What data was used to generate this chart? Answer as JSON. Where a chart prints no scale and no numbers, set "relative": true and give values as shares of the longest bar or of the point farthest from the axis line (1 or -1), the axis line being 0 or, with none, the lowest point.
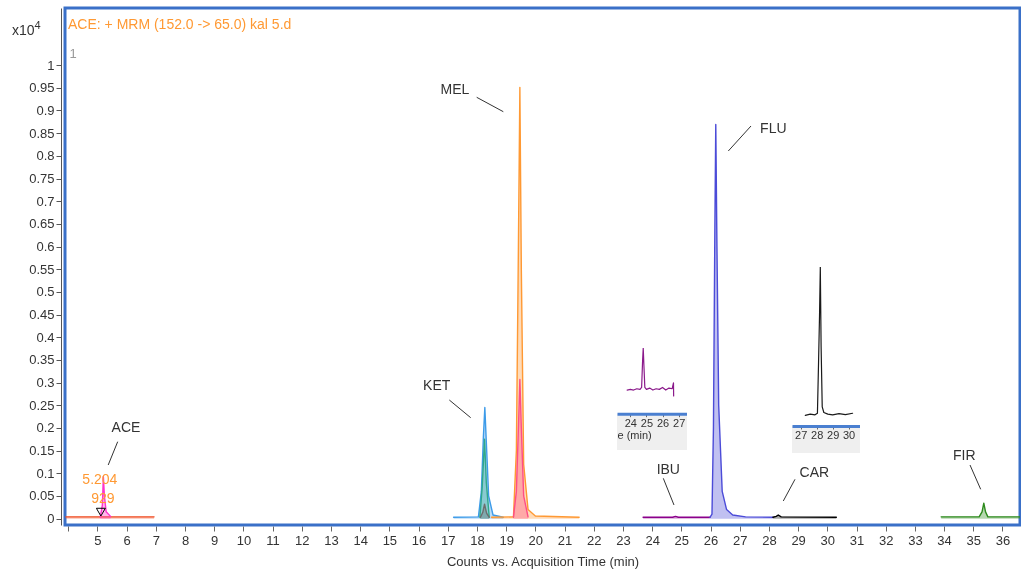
{
  "chart_data": [
    {
      "type": "area",
      "title": "ACE: + MRM (152.0 -> 65.0) kal 5.d",
      "xlabel": "Counts vs. Acquisition Time (min)",
      "ylabel": "x10$^{4}$",
      "xlim": [
        3.89,
        36.6
      ],
      "ylim": [
        -0.014,
        1.126
      ],
      "xticks": [
        {
          "value": 4,
          "label": null
        },
        5,
        6,
        7,
        8,
        9,
        10,
        11,
        12,
        13,
        14,
        15,
        16,
        17,
        18,
        19,
        20,
        21,
        22,
        23,
        24,
        25,
        26,
        27,
        28,
        29,
        30,
        31,
        32,
        33,
        34,
        35,
        36
      ],
      "yticks": [
        0,
        0.05,
        0.1,
        0.15,
        0.2,
        0.25,
        0.3,
        0.35,
        0.4,
        0.45,
        0.5,
        0.55,
        0.6,
        0.65,
        0.7,
        0.75,
        0.8,
        0.85,
        0.9,
        0.95,
        1
      ],
      "series": [
        {
          "color": "#f04e23",
          "x": [
            3.92,
            5.0,
            5.4,
            6.94
          ],
          "values": [
            0.004,
            0.004,
            0.004,
            0.004
          ]
        },
        {
          "color": "#ff33cc",
          "x": [
            5.1,
            5.17,
            5.204,
            5.24,
            5.3,
            5.45
          ],
          "values": [
            0.004,
            0.03,
            0.093,
            0.05,
            0.015,
            0.005
          ]
        },
        {
          "color": "#3d9be9",
          "x": [
            17.2,
            18.05,
            18.15,
            18.22,
            18.27,
            18.32,
            18.4,
            18.55,
            18.9
          ],
          "values": [
            0.003,
            0.004,
            0.06,
            0.18,
            0.245,
            0.17,
            0.05,
            0.008,
            0.003
          ]
        },
        {
          "color": "#2fa88a",
          "x": [
            18.1,
            18.18,
            18.26,
            18.32,
            18.42
          ],
          "values": [
            0.003,
            0.07,
            0.175,
            0.08,
            0.004
          ]
        },
        {
          "color": "#6e6e6e",
          "x": [
            18.12,
            18.2,
            18.26,
            18.33,
            18.42
          ],
          "values": [
            0.003,
            0.014,
            0.032,
            0.012,
            0.003
          ]
        },
        {
          "color": "#ff9933",
          "x": [
            18.5,
            19.25,
            19.35,
            19.42,
            19.47,
            19.52,
            19.6,
            19.75,
            20.0,
            21.5
          ],
          "values": [
            0.003,
            0.004,
            0.15,
            0.6,
            0.951,
            0.55,
            0.12,
            0.02,
            0.006,
            0.003
          ]
        },
        {
          "color": "#ff4d88",
          "x": [
            19.25,
            19.35,
            19.43,
            19.47,
            19.52,
            19.6,
            19.75
          ],
          "values": [
            0.003,
            0.06,
            0.22,
            0.307,
            0.2,
            0.05,
            0.004
          ]
        },
        {
          "color": "#8b008b",
          "x": [
            23.69,
            24.7,
            24.8,
            24.9,
            25.98
          ],
          "values": [
            0.003,
            0.003,
            0.005,
            0.003,
            0.003
          ]
        },
        {
          "color": "#4b4bd8",
          "x": [
            25.98,
            26.05,
            26.1,
            26.15,
            26.18,
            26.22,
            26.28,
            26.4,
            26.55,
            26.76,
            27.2,
            28.14
          ],
          "values": [
            0.003,
            0.01,
            0.2,
            0.65,
            0.869,
            0.6,
            0.25,
            0.06,
            0.02,
            0.008,
            0.004,
            0.003
          ]
        },
        {
          "color": "#000000",
          "x": [
            28.14,
            28.25,
            28.32,
            28.42,
            30.31
          ],
          "values": [
            0.003,
            0.005,
            0.008,
            0.004,
            0.003
          ]
        },
        {
          "color": "#2e8b1e",
          "x": [
            33.9,
            35.2,
            35.3,
            35.36,
            35.42,
            35.5,
            36.6
          ],
          "values": [
            0.004,
            0.004,
            0.015,
            0.034,
            0.015,
            0.004,
            0.004
          ]
        }
      ],
      "annotations": [
        "ACE",
        "KET",
        "MEL",
        "IBU",
        "FLU",
        "CAR",
        "FIR",
        {
          "text": "5.204",
          "x": 5.204,
          "y": 0.085
        },
        {
          "text": "929",
          "x": 5.204,
          "y": 0.043
        },
        "1"
      ]
    },
    {
      "type": "line",
      "relative": true,
      "xlabel": "e (min)",
      "xlim": [
        23.17,
        27.52
      ],
      "xticks": [
        24,
        25,
        26,
        27
      ],
      "series": [
        {
          "color": "#8b1a8b",
          "x": [
            23.8,
            24.0,
            24.2,
            24.4,
            24.6,
            24.7,
            24.76,
            24.8,
            24.84,
            24.9,
            25.0,
            25.2,
            25.4,
            25.6,
            25.8,
            26.0,
            26.2,
            26.4,
            26.6,
            26.68,
            26.69
          ],
          "values": [
            0.36,
            0.37,
            0.36,
            0.38,
            0.37,
            0.4,
            0.8,
            1.0,
            0.75,
            0.4,
            0.37,
            0.39,
            0.36,
            0.38,
            0.37,
            0.4,
            0.36,
            0.39,
            0.38,
            0.47,
            0.27
          ]
        }
      ]
    },
    {
      "type": "line",
      "relative": true,
      "xlim": [
        26.46,
        30.73
      ],
      "xticks": [
        27,
        28,
        29,
        30
      ],
      "series": [
        {
          "color": "#1a1a1a",
          "x": [
            27.29,
            27.6,
            27.9,
            28.05,
            28.12,
            28.18,
            28.23,
            28.28,
            28.35,
            28.45,
            28.7,
            29.0,
            29.4,
            29.8,
            30.25
          ],
          "values": [
            0.067,
            0.075,
            0.07,
            0.08,
            0.4,
            0.69,
            1.0,
            0.5,
            0.12,
            0.085,
            0.075,
            0.07,
            0.078,
            0.072,
            0.08
          ]
        }
      ]
    }
  ]
}
